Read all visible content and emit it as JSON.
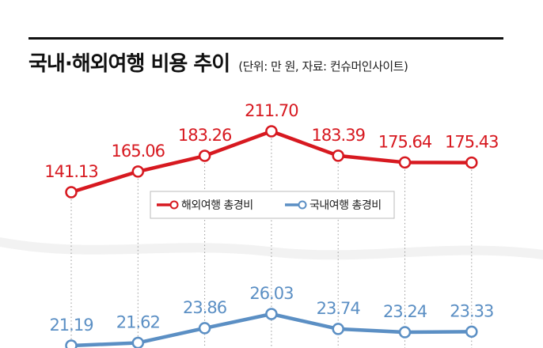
{
  "header": {
    "title": "국내·해외여행 비용 추이",
    "subtitle": "(단위: 만 원, 자료: 컨슈머인사이트)"
  },
  "colors": {
    "overseas": "#d71920",
    "domestic": "#5b8fc4",
    "guide": "#999999",
    "wave": "#f2f2f2"
  },
  "chart_data": {
    "type": "line",
    "title": "국내·해외여행 비용 추이",
    "subtitle": "(단위: 만 원, 자료: 컨슈머인사이트)",
    "x": [
      1,
      2,
      3,
      4,
      5,
      6,
      7
    ],
    "axis_break": true,
    "legend": {
      "position": "center",
      "entries": [
        "해외여행 총경비",
        "국내여행 총경비"
      ]
    },
    "series": [
      {
        "name": "해외여행 총경비",
        "color": "#d71920",
        "values": [
          141.13,
          165.06,
          183.26,
          211.7,
          183.39,
          175.64,
          175.43
        ],
        "labels": [
          "141.13",
          "165.06",
          "183.26",
          "211.70",
          "183.39",
          "175.64",
          "175.43"
        ]
      },
      {
        "name": "국내여행 총경비",
        "color": "#5b8fc4",
        "values": [
          21.19,
          21.62,
          23.86,
          26.03,
          23.74,
          23.24,
          23.33
        ],
        "labels": [
          "21.19",
          "21.62",
          "23.86",
          "26.03",
          "23.74",
          "23.24",
          "23.33"
        ]
      }
    ]
  }
}
